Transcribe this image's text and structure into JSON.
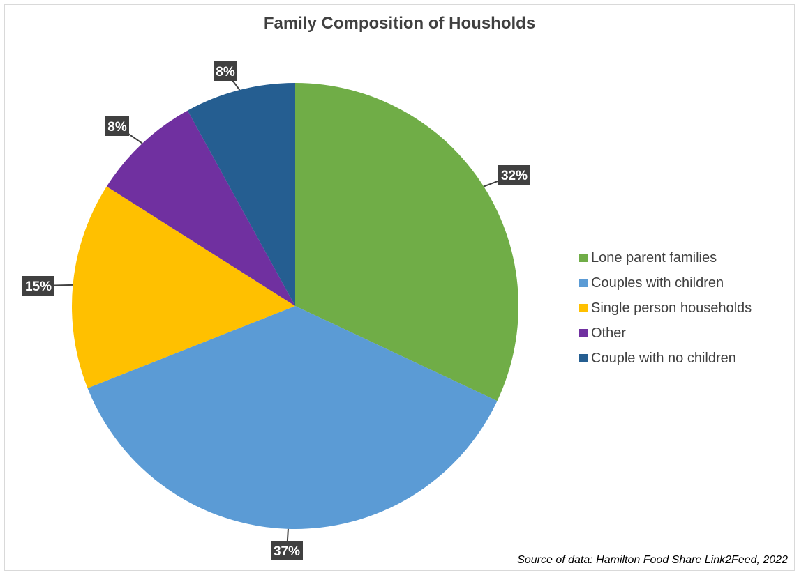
{
  "chart_data": {
    "type": "pie",
    "title": "Family Composition of Housholds",
    "categories": [
      "Lone parent families",
      "Couples with children",
      "Single person households",
      "Other",
      "Couple with no children"
    ],
    "values": [
      32,
      37,
      15,
      8,
      8
    ],
    "data_labels": [
      "32%",
      "37%",
      "15%",
      "8%",
      "8%"
    ],
    "colors": [
      "#70ad47",
      "#5b9bd5",
      "#ffc000",
      "#7030a0",
      "#255e91"
    ],
    "legend_position": "right",
    "start_angle_deg": 0,
    "direction": "clockwise"
  },
  "source_note": "Source of data: Hamilton Food Share Link2Feed, 2022"
}
